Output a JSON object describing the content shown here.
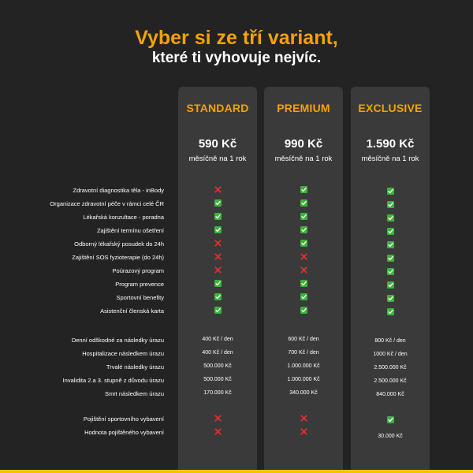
{
  "header": {
    "title": "Vyber si ze tří variant,",
    "subtitle": "které ti vyhovuje nejvíc."
  },
  "colors": {
    "background": "#232323",
    "column": "#3a3a3a",
    "accent": "#f5a300",
    "check": "#3bb43b",
    "cross": "#e03030",
    "bottom_bar": "#f5c400"
  },
  "plans": [
    {
      "name": "STANDARD",
      "price": "590 Kč",
      "period": "měsíčně na 1 rok"
    },
    {
      "name": "PREMIUM",
      "price": "990 Kč",
      "period": "měsíčně na 1 rok"
    },
    {
      "name": "EXCLUSIVE",
      "price": "1.590 Kč",
      "period": "měsíčně na 1 rok"
    }
  ],
  "rows": [
    {
      "label": "Zdravotní diagnostika těla - inBody",
      "values": [
        "cross-icon",
        "check-icon",
        "check-icon"
      ]
    },
    {
      "label": "Organizace zdravotní péče v rámci celé ČR",
      "values": [
        "check-icon",
        "check-icon",
        "check-icon"
      ]
    },
    {
      "label": "Lékařská konzultace - poradna",
      "values": [
        "check-icon",
        "check-icon",
        "check-icon"
      ]
    },
    {
      "label": "Zajištění termínu ošetření",
      "values": [
        "check-icon",
        "check-icon",
        "check-icon"
      ]
    },
    {
      "label": "Odborný lékařský posudek  do 24h",
      "values": [
        "cross-icon",
        "check-icon",
        "check-icon"
      ]
    },
    {
      "label": "Zajištění SOS fyzioterapie (do 24h)",
      "values": [
        "cross-icon",
        "cross-icon",
        "check-icon"
      ]
    },
    {
      "label": "Poúrazový program",
      "values": [
        "cross-icon",
        "cross-icon",
        "check-icon"
      ]
    },
    {
      "label": "Program prevence",
      "values": [
        "check-icon",
        "check-icon",
        "check-icon"
      ]
    },
    {
      "label": "Sportovní benefity",
      "values": [
        "check-icon",
        "check-icon",
        "check-icon"
      ]
    },
    {
      "label": "Asistenční členská karta",
      "values": [
        "check-icon",
        "check-icon",
        "check-icon"
      ]
    },
    {
      "label": "Denní odškodné za následky úrazu",
      "values": [
        "400 Kč / den",
        "600 Kč / den",
        "800 Kč / den"
      ]
    },
    {
      "label": "Hospitalizace následkem úrazu",
      "values": [
        "400 Kč / den",
        "700 Kč / den",
        "1000 Kč / den"
      ]
    },
    {
      "label": "Trvalé následky úrazu",
      "values": [
        "500.000 Kč",
        "1.000.000 Kč",
        "2.500.000 Kč"
      ]
    },
    {
      "label": "Invalidita 2.a 3. stupně z důvodu úrazu",
      "values": [
        "500.000 Kč",
        "1.000.000 Kč",
        "2.500.000 Kč"
      ]
    },
    {
      "label": "Smrt následkem úrazu",
      "values": [
        "170.000 Kč",
        "340.000 Kč",
        "840.000 Kč"
      ]
    },
    {
      "label": "Pojištění sportovního vybavení",
      "values": [
        "cross-icon",
        "cross-icon",
        "check-icon"
      ]
    },
    {
      "label": "Hodnota pojištěného vybavení",
      "values": [
        "cross-icon",
        "cross-icon",
        "30.000 Kč"
      ]
    }
  ]
}
